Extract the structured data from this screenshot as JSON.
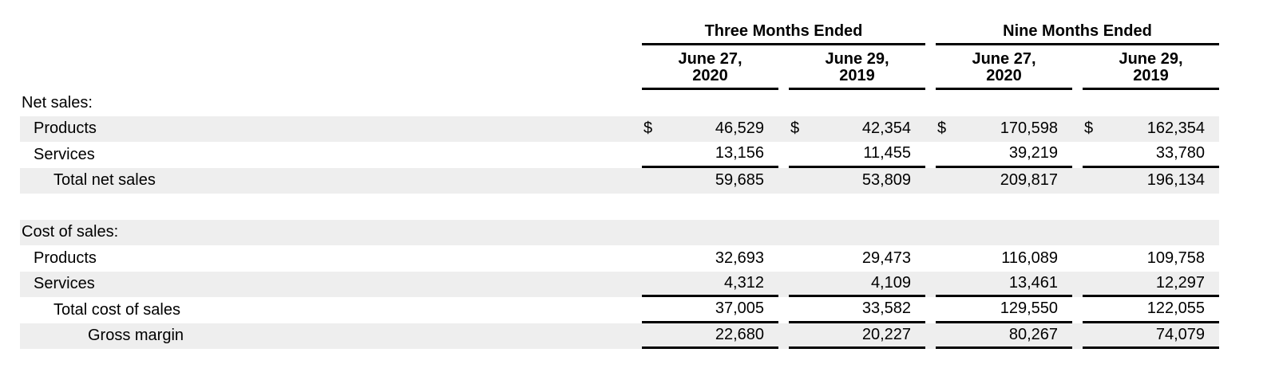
{
  "document": {
    "currency_symbol": "$",
    "colors": {
      "shade": "#eeeeee",
      "rule": "#000000",
      "text": "#000000"
    },
    "groups": [
      {
        "title": "Three Months Ended",
        "columns": [
          {
            "line1": "June 27,",
            "line2": "2020"
          },
          {
            "line1": "June 29,",
            "line2": "2019"
          }
        ]
      },
      {
        "title": "Nine Months Ended",
        "columns": [
          {
            "line1": "June 27,",
            "line2": "2020"
          },
          {
            "line1": "June 29,",
            "line2": "2019"
          }
        ]
      }
    ],
    "rows": [
      {
        "kind": "section",
        "label": "Net sales:",
        "indent": 0,
        "shaded": false,
        "dollar": false,
        "rule_below": false,
        "values": [
          "",
          "",
          "",
          ""
        ]
      },
      {
        "kind": "item",
        "label": "Products",
        "indent": 1,
        "shaded": true,
        "dollar": true,
        "rule_below": false,
        "values": [
          "46,529",
          "42,354",
          "170,598",
          "162,354"
        ]
      },
      {
        "kind": "item",
        "label": "Services",
        "indent": 1,
        "shaded": false,
        "dollar": false,
        "rule_below": true,
        "values": [
          "13,156",
          "11,455",
          "39,219",
          "33,780"
        ]
      },
      {
        "kind": "total",
        "label": "Total net sales",
        "indent": 2,
        "shaded": true,
        "dollar": false,
        "rule_below": false,
        "values": [
          "59,685",
          "53,809",
          "209,817",
          "196,134"
        ]
      },
      {
        "kind": "spacer",
        "label": "",
        "indent": 0,
        "shaded": false,
        "dollar": false,
        "rule_below": false,
        "values": [
          "",
          "",
          "",
          ""
        ]
      },
      {
        "kind": "section",
        "label": "Cost of sales:",
        "indent": 0,
        "shaded": true,
        "dollar": false,
        "rule_below": false,
        "values": [
          "",
          "",
          "",
          ""
        ]
      },
      {
        "kind": "item",
        "label": "Products",
        "indent": 1,
        "shaded": false,
        "dollar": false,
        "rule_below": false,
        "values": [
          "32,693",
          "29,473",
          "116,089",
          "109,758"
        ]
      },
      {
        "kind": "item",
        "label": "Services",
        "indent": 1,
        "shaded": true,
        "dollar": false,
        "rule_below": true,
        "values": [
          "4,312",
          "4,109",
          "13,461",
          "12,297"
        ]
      },
      {
        "kind": "total",
        "label": "Total cost of sales",
        "indent": 2,
        "shaded": false,
        "dollar": false,
        "rule_below": true,
        "values": [
          "37,005",
          "33,582",
          "129,550",
          "122,055"
        ]
      },
      {
        "kind": "total",
        "label": "Gross margin",
        "indent": 3,
        "shaded": true,
        "dollar": false,
        "rule_below": true,
        "values": [
          "22,680",
          "20,227",
          "80,267",
          "74,079"
        ]
      }
    ]
  }
}
